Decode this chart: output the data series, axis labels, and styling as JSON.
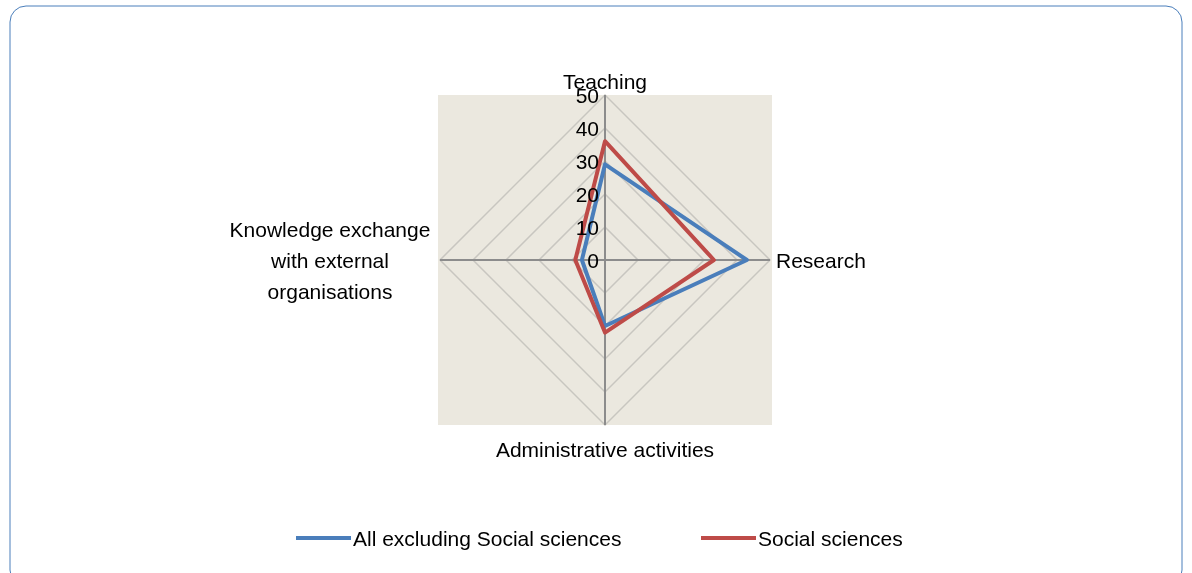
{
  "chart_data": {
    "type": "radar",
    "categories": [
      "Teaching",
      "Research",
      "Administrative activities",
      "Knowledge exchange with external organisations"
    ],
    "series": [
      {
        "name": "All excluding Social sciences",
        "color": "#4a7ebb",
        "values": [
          29,
          43,
          20,
          7
        ]
      },
      {
        "name": "Social sciences",
        "color": "#be4b48",
        "values": [
          36,
          33,
          22,
          9
        ]
      }
    ],
    "ylim": [
      0,
      50
    ],
    "yticks": [
      0,
      10,
      20,
      30,
      40,
      50
    ],
    "grid": true,
    "legend": "bottom"
  }
}
